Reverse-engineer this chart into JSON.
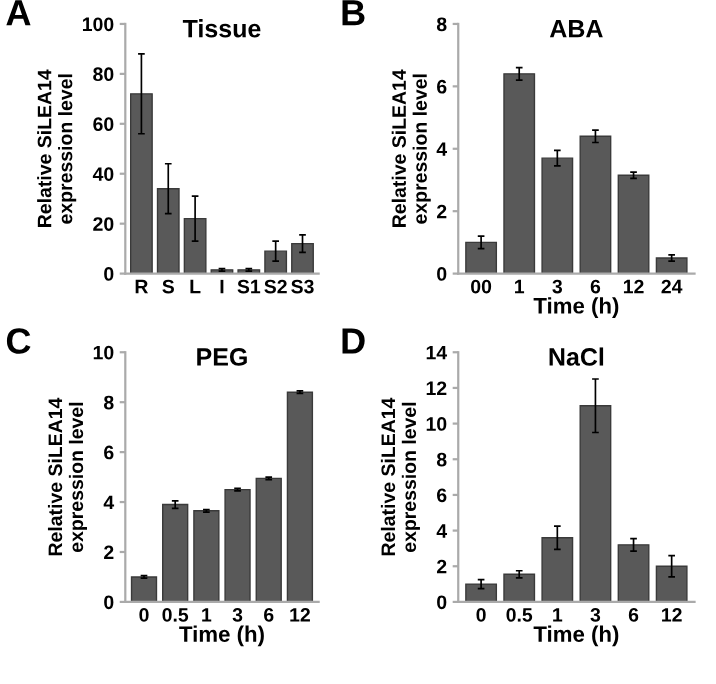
{
  "chart_data": [
    {
      "type": "bar",
      "title": "Tissue",
      "ylabel": "Relative SiLEA14 expression level",
      "annotations": [
        "A"
      ],
      "categories": [
        "R",
        "S",
        "L",
        "I",
        "S1",
        "S2",
        "S3"
      ],
      "color": "#595959",
      "values": [
        72,
        34,
        22,
        1.5,
        1.5,
        9,
        12
      ],
      "errors": [
        16,
        10,
        9,
        0.5,
        0.5,
        4,
        3.5
      ],
      "ylim": [
        0,
        100
      ],
      "yticks": [
        0,
        20,
        40,
        60,
        80,
        100
      ]
    },
    {
      "type": "bar",
      "title": "ABA",
      "ylabel": "Relative SiLEA14 expression level",
      "xlabel": "Time (h)",
      "annotations": [
        "B"
      ],
      "categories": [
        "00",
        "1",
        "3",
        "6",
        "12",
        "24"
      ],
      "color": "#595959",
      "values": [
        1.0,
        6.4,
        3.7,
        4.4,
        3.15,
        0.5
      ],
      "errors": [
        0.2,
        0.2,
        0.25,
        0.2,
        0.1,
        0.1
      ],
      "ylim": [
        0,
        8
      ],
      "yticks": [
        0,
        2,
        4,
        6,
        8
      ]
    },
    {
      "type": "bar",
      "title": "PEG",
      "ylabel": "Relative SiLEA14 expression level",
      "xlabel": "Time (h)",
      "annotations": [
        "C"
      ],
      "categories": [
        "0",
        "0.5",
        "1",
        "3",
        "6",
        "12"
      ],
      "color": "#595959",
      "values": [
        1.0,
        3.9,
        3.65,
        4.5,
        4.95,
        8.4
      ],
      "errors": [
        0.05,
        0.15,
        0.05,
        0.05,
        0.05,
        0.05
      ],
      "ylim": [
        0,
        10
      ],
      "yticks": [
        0,
        2,
        4,
        6,
        8,
        10
      ]
    },
    {
      "type": "bar",
      "title": "NaCl",
      "ylabel": "Relative SiLEA14 expression level",
      "xlabel": "Time (h)",
      "annotations": [
        "D"
      ],
      "categories": [
        "0",
        "0.5",
        "1",
        "3",
        "6",
        "12"
      ],
      "color": "#595959",
      "values": [
        1.0,
        1.55,
        3.6,
        11.0,
        3.2,
        2.0
      ],
      "errors": [
        0.25,
        0.2,
        0.65,
        1.5,
        0.35,
        0.6
      ],
      "ylim": [
        0,
        14
      ],
      "yticks": [
        0,
        2,
        4,
        6,
        8,
        10,
        12,
        14
      ]
    }
  ]
}
